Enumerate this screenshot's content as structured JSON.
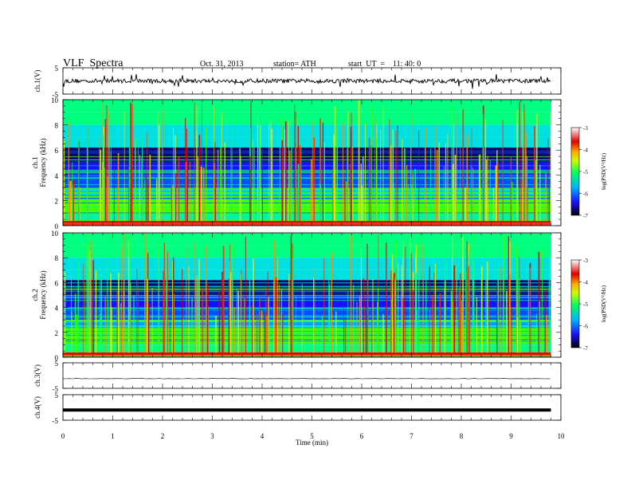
{
  "header": {
    "title": "VLF  Spectra",
    "date": "Oct. 31, 2013",
    "station": "station= ATH",
    "start": "start  UT  =    11: 40: 0"
  },
  "chart_data": [
    {
      "type": "line",
      "panel": "ch1-waveform",
      "ylabel": "ch.1(V)",
      "ylim": [
        -5,
        5
      ],
      "yticks": [
        "5",
        "-5"
      ],
      "xlim": [
        0,
        10
      ],
      "series": [
        {
          "x_extent_min": [
            0,
            9.8
          ],
          "baseline_value": 0
        }
      ]
    },
    {
      "type": "heatmap",
      "panel": "ch1-spectrogram",
      "ylabel": "ch.1\nFrequency  (kHz)",
      "ylabel_lines": [
        "ch.1",
        "Frequency  (kHz)"
      ],
      "ylim": [
        0,
        10
      ],
      "yticks": [
        "0",
        "2",
        "4",
        "6",
        "8",
        "10"
      ],
      "xlim": [
        0,
        10
      ],
      "data_extent_min": [
        0,
        9.8
      ],
      "colorbar": {
        "label": "log(PSD(V²/Hz)",
        "ticks": [
          "-3",
          "-4",
          "-5",
          "-6",
          "-7"
        ],
        "range": [
          -7,
          -3
        ]
      }
    },
    {
      "type": "heatmap",
      "panel": "ch2-spectrogram",
      "ylabel": "ch.2\nFrequency  (kHz)",
      "ylabel_lines": [
        "ch.2",
        "Frequency  (kHz)"
      ],
      "ylim": [
        0,
        10
      ],
      "yticks": [
        "0",
        "2",
        "4",
        "6",
        "8",
        "10"
      ],
      "xlim": [
        0,
        10
      ],
      "data_extent_min": [
        0,
        9.8
      ],
      "colorbar": {
        "label": "log(PSD(V²/Hz)",
        "ticks": [
          "-3",
          "-4",
          "-5",
          "-6",
          "-7"
        ],
        "range": [
          -7,
          -3
        ]
      }
    },
    {
      "type": "line",
      "panel": "ch3-waveform",
      "ylabel": "ch.3(V)",
      "ylim": [
        -5,
        5
      ],
      "yticks": [
        "5",
        "-5"
      ],
      "xlim": [
        0,
        10
      ],
      "series": [
        {
          "x_extent_min": [
            0,
            9.8
          ],
          "baseline_value": -1.2
        }
      ]
    },
    {
      "type": "line",
      "panel": "ch4-waveform",
      "ylabel": "ch.4(V)",
      "ylim": [
        -5,
        5
      ],
      "yticks": [
        "5",
        "-5"
      ],
      "xlim": [
        0,
        10
      ],
      "series": [
        {
          "x_extent_min": [
            0,
            9.8
          ],
          "baseline_value": -1.0
        }
      ]
    }
  ],
  "xaxis": {
    "label": "Time  (min)",
    "ticks": [
      "0",
      "1",
      "2",
      "3",
      "4",
      "5",
      "6",
      "7",
      "8",
      "9",
      "10"
    ],
    "range": [
      0,
      10
    ]
  }
}
